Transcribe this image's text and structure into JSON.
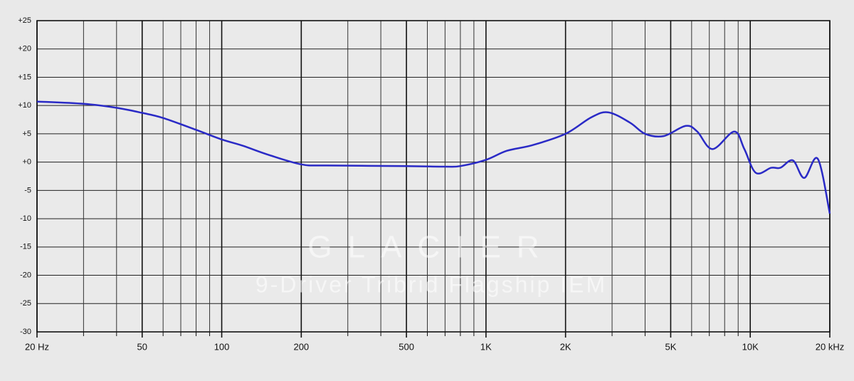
{
  "chart_data": {
    "type": "line",
    "annotations": [
      "GLACIER",
      "9-Driver Tribrid Flagship IEM"
    ],
    "x": [
      20,
      30,
      40,
      50,
      60,
      80,
      100,
      120,
      150,
      200,
      250,
      500,
      700,
      800,
      1000,
      1200,
      1500,
      2000,
      2500,
      2900,
      3500,
      4000,
      4700,
      5700,
      6300,
      7200,
      8700,
      9500,
      10500,
      12000,
      13000,
      14500,
      16000,
      18000,
      20000
    ],
    "series": [
      {
        "color": "#2a2ac6",
        "values": [
          10.7,
          10.3,
          9.6,
          8.7,
          7.8,
          5.7,
          4.0,
          2.9,
          1.3,
          -0.4,
          -0.6,
          -0.7,
          -0.8,
          -0.7,
          0.4,
          2.0,
          3.0,
          5.0,
          7.9,
          8.8,
          7.0,
          5.0,
          4.6,
          6.4,
          5.4,
          2.3,
          5.4,
          2.3,
          -1.9,
          -1.0,
          -1.0,
          0.3,
          -2.8,
          0.6,
          -9.1
        ]
      }
    ],
    "xscale": "log",
    "xlim": [
      20,
      20000
    ],
    "xticks": [
      {
        "value": 20,
        "label": "20 Hz"
      },
      50,
      100,
      200,
      500,
      {
        "value": 1000,
        "label": "1K"
      },
      {
        "value": 2000,
        "label": "2K"
      },
      {
        "value": 5000,
        "label": "5K"
      },
      {
        "value": 10000,
        "label": "10K"
      },
      {
        "value": 20000,
        "label": "20 kHz"
      }
    ],
    "xminorticks": [
      30,
      40,
      60,
      70,
      80,
      90,
      300,
      400,
      600,
      700,
      800,
      900,
      3000,
      4000,
      6000,
      7000,
      8000,
      9000
    ],
    "ylim": [
      -30,
      25
    ],
    "yticks": [
      {
        "value": 25,
        "label": "+25"
      },
      {
        "value": 20,
        "label": "+20"
      },
      {
        "value": 15,
        "label": "+15"
      },
      {
        "value": 10,
        "label": "+10"
      },
      {
        "value": 5,
        "label": "+5"
      },
      {
        "value": 0,
        "label": "+0"
      },
      -5,
      -10,
      -15,
      -20,
      -25,
      -30
    ],
    "grid": true
  }
}
